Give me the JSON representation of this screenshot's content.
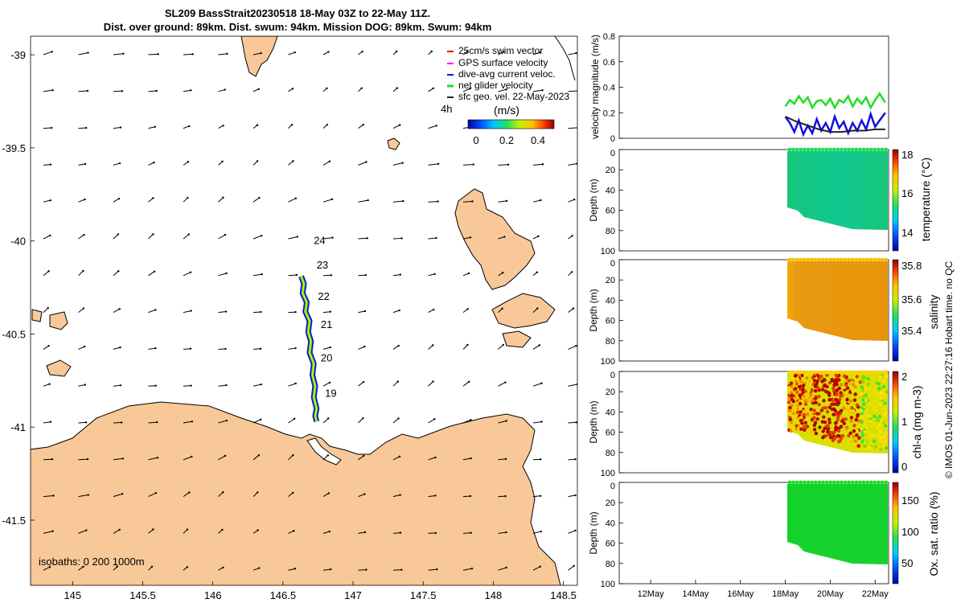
{
  "title": {
    "line1": "SL209 BassStrait20230518 18-May 03Z to 22-May 11Z.",
    "line2": "Dist. over ground: 89km. Dist. swum: 94km. Mission DOG: 89km. Swum: 94km"
  },
  "colors": {
    "land": "#f9c898",
    "coast": "#000000",
    "track_glider": "#1010e0",
    "track_yellow": "#ffe600",
    "net_velocity": "#22dd22",
    "swim_vector": "#dd0000",
    "gps_velocity": "#ff00ff",
    "current": "#0000cc"
  },
  "chart_data": [
    {
      "type": "map",
      "title": "glider track map",
      "xlim": [
        144.7,
        148.6
      ],
      "ylim": [
        -41.85,
        -38.9
      ],
      "x_ticks": [
        "145",
        "145.5",
        "146",
        "146.5",
        "147",
        "147.5",
        "148",
        "148.5"
      ],
      "x_tick_values": [
        145,
        145.5,
        146,
        146.5,
        147,
        147.5,
        148,
        148.5
      ],
      "y_ticks": [
        "-39",
        "-39.5",
        "-40",
        "-40.5",
        "-41",
        "-41.5"
      ],
      "y_tick_values": [
        -39,
        -39.5,
        -40,
        -40.5,
        -41,
        -41.5
      ],
      "legend": [
        "25cm/s swim vector",
        "GPS surface velocity",
        "dive-avg current veloc.",
        "net glider velocity",
        "sfc geo. vel. 22-May-2023"
      ],
      "legend_placement": "top-right",
      "time_label": "4h",
      "colorbar": {
        "label": "(m/s)",
        "ticks": [
          "0",
          "0.2",
          "0.4"
        ],
        "range": [
          -0.05,
          0.5
        ]
      },
      "track_day_labels": [
        {
          "label": "24",
          "lon": 146.72,
          "lat": -40.0
        },
        {
          "label": "23",
          "lon": 146.74,
          "lat": -40.13
        },
        {
          "label": "22",
          "lon": 146.75,
          "lat": -40.3
        },
        {
          "label": "21",
          "lon": 146.77,
          "lat": -40.45
        },
        {
          "label": "20",
          "lon": 146.77,
          "lat": -40.63
        },
        {
          "label": "19",
          "lon": 146.8,
          "lat": -40.82
        }
      ],
      "track": [
        [
          146.63,
          -40.19
        ],
        [
          146.65,
          -40.23
        ],
        [
          146.64,
          -40.28
        ],
        [
          146.67,
          -40.33
        ],
        [
          146.66,
          -40.38
        ],
        [
          146.69,
          -40.43
        ],
        [
          146.68,
          -40.49
        ],
        [
          146.7,
          -40.54
        ],
        [
          146.69,
          -40.6
        ],
        [
          146.72,
          -40.66
        ],
        [
          146.71,
          -40.72
        ],
        [
          146.73,
          -40.78
        ],
        [
          146.72,
          -40.84
        ],
        [
          146.74,
          -40.9
        ],
        [
          146.73,
          -40.94
        ],
        [
          146.74,
          -40.97
        ]
      ],
      "isobaths_label": "isobaths: 0   200  1000m"
    },
    {
      "type": "line",
      "title": "velocity magnitude",
      "ylabel": "velocity magnitude (m/s)",
      "ylim": [
        0,
        0.8
      ],
      "y_ticks": [
        "0",
        "0.2",
        "0.4",
        "0.6",
        "0.8"
      ],
      "x_range_days": [
        10.6,
        22.6
      ],
      "series": [
        {
          "name": "net glider velocity",
          "color": "#22dd22",
          "t": [
            18.0,
            18.2,
            18.4,
            18.6,
            18.8,
            19.0,
            19.2,
            19.4,
            19.6,
            19.8,
            20.0,
            20.2,
            20.4,
            20.6,
            20.8,
            21.0,
            21.2,
            21.4,
            21.6,
            21.8,
            22.0,
            22.2,
            22.45
          ],
          "v": [
            0.25,
            0.3,
            0.27,
            0.33,
            0.28,
            0.32,
            0.24,
            0.29,
            0.3,
            0.26,
            0.31,
            0.24,
            0.3,
            0.28,
            0.33,
            0.25,
            0.31,
            0.27,
            0.32,
            0.24,
            0.3,
            0.35,
            0.28
          ]
        },
        {
          "name": "dive-avg current veloc.",
          "color": "#1010e0",
          "t": [
            18.0,
            18.2,
            18.4,
            18.6,
            18.8,
            19.0,
            19.2,
            19.4,
            19.6,
            19.8,
            20.0,
            20.2,
            20.4,
            20.6,
            20.8,
            21.0,
            21.2,
            21.4,
            21.6,
            21.8,
            22.0,
            22.2,
            22.45
          ],
          "v": [
            0.17,
            0.12,
            0.05,
            0.14,
            0.03,
            0.1,
            0.04,
            0.15,
            0.06,
            0.12,
            0.05,
            0.17,
            0.08,
            0.13,
            0.04,
            0.12,
            0.06,
            0.14,
            0.07,
            0.19,
            0.09,
            0.14,
            0.2
          ]
        },
        {
          "name": "sfc geo. vel.",
          "color": "#222222",
          "t": [
            18.0,
            18.5,
            19.0,
            19.5,
            20.0,
            20.5,
            21.0,
            21.5,
            22.0,
            22.45
          ],
          "v": [
            0.17,
            0.13,
            0.1,
            0.07,
            0.05,
            0.05,
            0.06,
            0.06,
            0.07,
            0.07
          ]
        }
      ]
    },
    {
      "type": "heatmap",
      "title": "temperature",
      "ylabel": "Depth (m)",
      "colorbar_label": "temperature (°C)",
      "colorbar_ticks": [
        "14",
        "16",
        "18"
      ],
      "colorbar_range": [
        13.3,
        18.2
      ],
      "depth_ticks": [
        "20",
        "40",
        "60",
        "80",
        "100"
      ],
      "depth_range": [
        0,
        100
      ],
      "value_summary": "uniform ~15.6 °C"
    },
    {
      "type": "heatmap",
      "title": "salinity",
      "ylabel": "Depth (m)",
      "colorbar_label": "salinity",
      "colorbar_ticks": [
        "35.4",
        "35.6",
        "35.8"
      ],
      "colorbar_range": [
        35.3,
        35.82
      ],
      "depth_ticks": [
        "20",
        "40",
        "60",
        "80",
        "100"
      ],
      "depth_range": [
        0,
        100
      ],
      "value_summary": "~35.7"
    },
    {
      "type": "heatmap",
      "title": "chlorophyll-a",
      "ylabel": "Depth (m)",
      "colorbar_label": "chl-a (mg m-3)",
      "colorbar_ticks": [
        "0",
        "1",
        "2"
      ],
      "colorbar_range": [
        0,
        2
      ],
      "depth_ticks": [
        "20",
        "40",
        "60",
        "80",
        "100"
      ],
      "depth_range": [
        0,
        100
      ],
      "value_summary": "0.6 - 2+ mg m-3, highest around 19-20 May"
    },
    {
      "type": "heatmap",
      "title": "oxygen saturation",
      "ylabel": "Depth (m)",
      "colorbar_label": "Ox. sat. ratio (%)",
      "colorbar_ticks": [
        "50",
        "100",
        "150"
      ],
      "colorbar_range": [
        20,
        175
      ],
      "depth_ticks": [
        "20",
        "40",
        "60",
        "80",
        "100"
      ],
      "depth_range": [
        0,
        100
      ],
      "value_summary": "~100 %",
      "x_ticks": [
        "12May",
        "14May",
        "16May",
        "18May",
        "20May",
        "22May"
      ]
    }
  ],
  "footer": "© IMOS 01-Jun-2023 22:27:16 Hobart time. no QC"
}
